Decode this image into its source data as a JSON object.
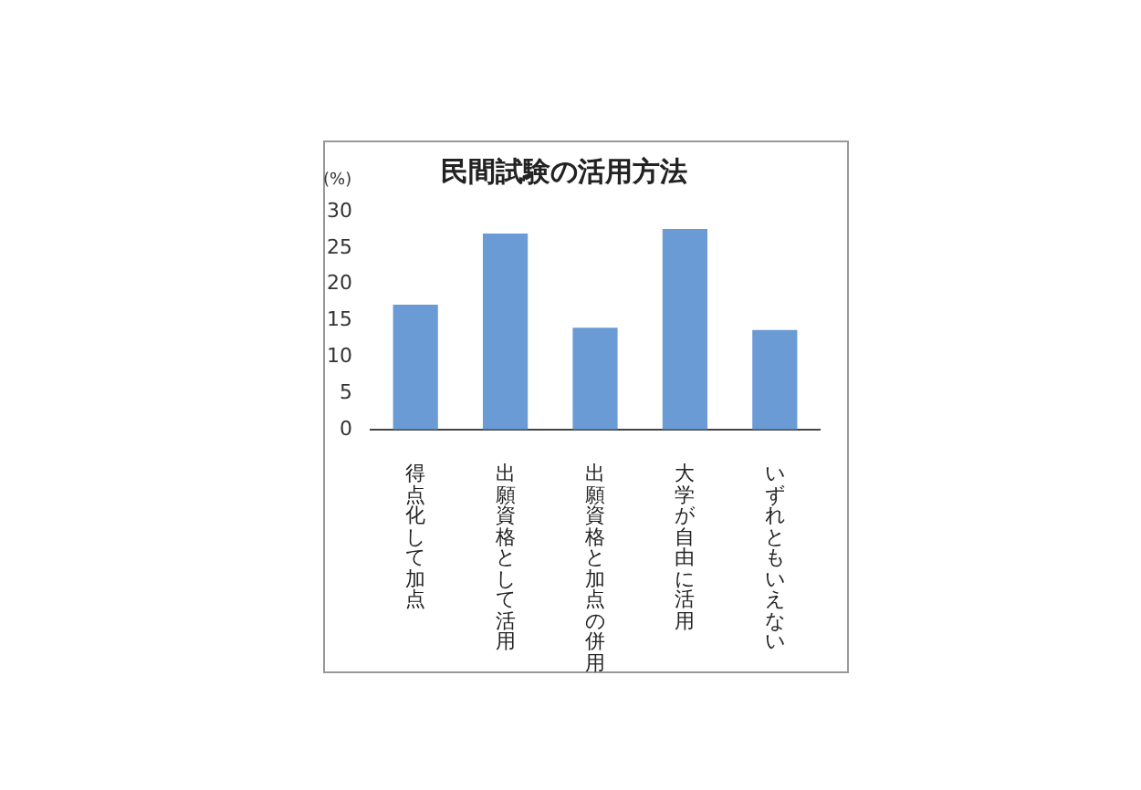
{
  "chart_data": {
    "type": "bar",
    "title": "民間試験の活用方法",
    "ylabel": "(%)",
    "categories": [
      "得点化して加点",
      "出願資格として活用",
      "出願資格と加点の併用",
      "大学が自由に活用",
      "いずれともいえない"
    ],
    "values": [
      17.2,
      27.0,
      14.0,
      27.6,
      13.7
    ],
    "color": "#6a9bd5",
    "ylim": [
      0,
      30
    ],
    "yticks": [
      0,
      5,
      10,
      15,
      20,
      25,
      30
    ],
    "grid": false,
    "legend": false
  }
}
